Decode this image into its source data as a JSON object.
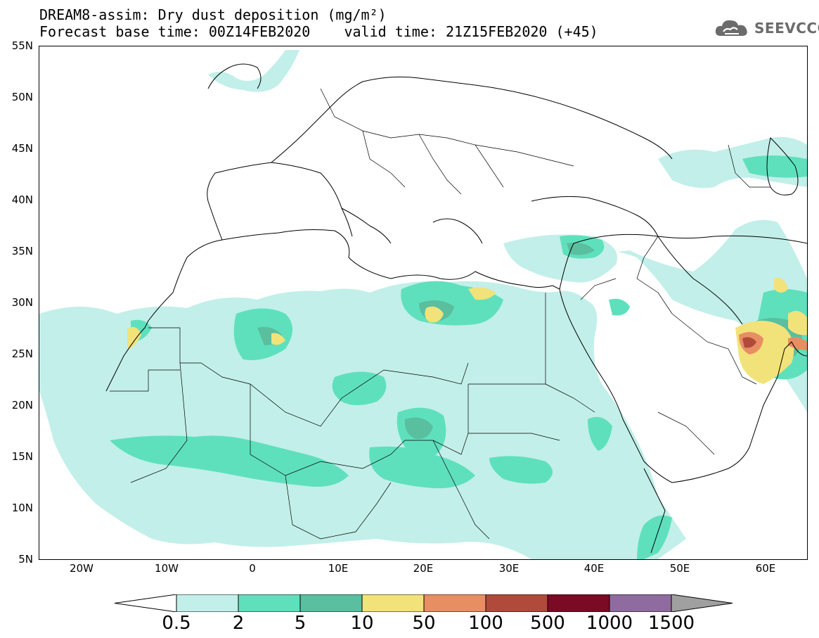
{
  "header": {
    "title_line1": "DREAM8-assim: Dry dust deposition (mg/m²)",
    "title_line2": "Forecast base time: 00Z14FEB2020    valid time: 21Z15FEB2020 (+45)"
  },
  "logo": {
    "text": "SEEVCCC",
    "icon": "cloud-icon",
    "color": "#6b6b6b"
  },
  "map": {
    "projection": "lat-lon",
    "lon_range": [
      -25,
      65
    ],
    "lat_range": [
      5,
      55
    ],
    "lat_labels": [
      "55N",
      "50N",
      "45N",
      "40N",
      "35N",
      "30N",
      "25N",
      "20N",
      "15N",
      "10N",
      "5N"
    ],
    "lon_labels": [
      "20W",
      "10W",
      "0",
      "10E",
      "20E",
      "30E",
      "40E",
      "50E",
      "60E"
    ]
  },
  "legend": {
    "labels": [
      "0.5",
      "2",
      "5",
      "10",
      "50",
      "100",
      "500",
      "1000",
      "1500"
    ],
    "colors": [
      "#c2efe9",
      "#5fe0bd",
      "#5abf9f",
      "#f2e27a",
      "#e88e63",
      "#b04a3b",
      "#7b0a24",
      "#8f6b9f",
      "#a0a0a0"
    ],
    "min_arrow_color": "#ffffff",
    "max_arrow_color": "#a0a0a0"
  }
}
